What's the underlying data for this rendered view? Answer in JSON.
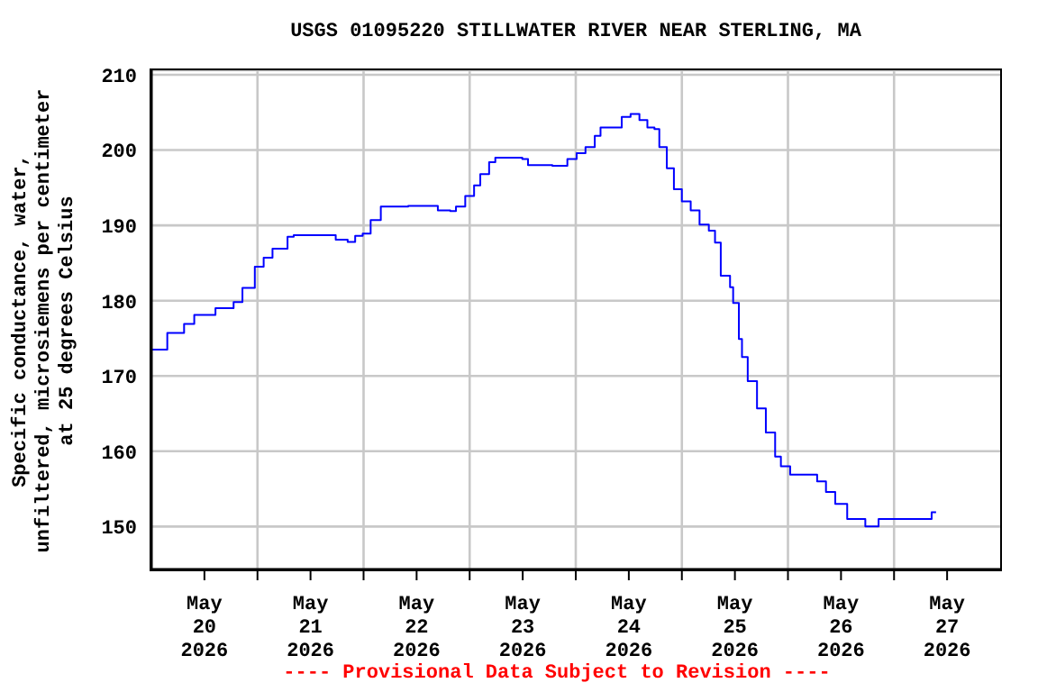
{
  "chart_data": {
    "type": "step",
    "title": "USGS 01095220 STILLWATER RIVER NEAR STERLING, MA",
    "ylabel": "Specific conductance, water,\nunfiltered, microsiemens per centimeter\nat 25 degrees Celsius",
    "annotations": [
      "---- Provisional Data Subject to Revision ----"
    ],
    "x": [
      "2026-05-19T12:12",
      "2026-05-19T15:36",
      "2026-05-19T19:24",
      "2026-05-19T21:42",
      "2026-05-20T02:30",
      "2026-05-20T06:36",
      "2026-05-20T08:36",
      "2026-05-20T11:24",
      "2026-05-20T13:24",
      "2026-05-20T15:24",
      "2026-05-20T18:48",
      "2026-05-20T20:12",
      "2026-05-21T03:00",
      "2026-05-21T05:42",
      "2026-05-21T08:24",
      "2026-05-21T10:06",
      "2026-05-21T11:48",
      "2026-05-21T13:36",
      "2026-05-21T15:54",
      "2026-05-21T22:06",
      "2026-05-22T04:48",
      "2026-05-22T07:36",
      "2026-05-22T08:54",
      "2026-05-22T11:00",
      "2026-05-22T13:00",
      "2026-05-22T14:24",
      "2026-05-22T16:24",
      "2026-05-22T17:48",
      "2026-05-22T23:54",
      "2026-05-23T01:12",
      "2026-05-23T06:42",
      "2026-05-23T10:06",
      "2026-05-23T12:12",
      "2026-05-23T14:12",
      "2026-05-23T16:18",
      "2026-05-23T17:36",
      "2026-05-23T21:00",
      "2026-05-23T22:24",
      "2026-05-24T00:24",
      "2026-05-24T02:24",
      "2026-05-24T04:12",
      "2026-05-24T05:48",
      "2026-05-24T06:54",
      "2026-05-24T08:36",
      "2026-05-24T10:12",
      "2026-05-24T12:00",
      "2026-05-24T14:00",
      "2026-05-24T16:00",
      "2026-05-24T18:06",
      "2026-05-24T19:30",
      "2026-05-24T20:48",
      "2026-05-24T22:54",
      "2026-05-24T23:36",
      "2026-05-25T00:54",
      "2026-05-25T01:36",
      "2026-05-25T02:54",
      "2026-05-25T05:00",
      "2026-05-25T07:00",
      "2026-05-25T09:06",
      "2026-05-25T10:24",
      "2026-05-25T12:30",
      "2026-05-25T16:30",
      "2026-05-25T18:36",
      "2026-05-25T20:36",
      "2026-05-25T22:42",
      "2026-05-26T01:24",
      "2026-05-26T05:30",
      "2026-05-26T08:30",
      "2026-05-26T19:06",
      "2026-05-26T20:30",
      "2026-05-26T21:30"
    ],
    "series": [
      {
        "color": "#0000ff",
        "values": [
          173.5,
          175.7,
          176.9,
          178.1,
          179.0,
          179.8,
          181.7,
          184.5,
          185.7,
          186.9,
          188.5,
          188.7,
          188.7,
          188.1,
          187.8,
          188.6,
          188.9,
          190.7,
          192.5,
          192.6,
          192.0,
          191.9,
          192.5,
          193.9,
          195.3,
          196.8,
          198.4,
          199.0,
          198.8,
          198.0,
          197.9,
          198.8,
          199.6,
          200.4,
          201.9,
          203.0,
          203.0,
          204.4,
          204.8,
          204.0,
          203.0,
          202.8,
          200.4,
          197.6,
          194.8,
          193.2,
          192.0,
          190.1,
          189.3,
          187.7,
          183.3,
          181.8,
          179.7,
          174.9,
          172.5,
          169.3,
          165.7,
          162.5,
          159.3,
          158.0,
          156.9,
          156.9,
          156.0,
          154.6,
          153.0,
          151.0,
          150.0,
          151.0,
          151.0,
          151.9,
          151.9
        ]
      }
    ],
    "xlim": [
      "2026-05-19T12:00",
      "2026-05-27T12:00"
    ],
    "xticks": [
      {
        "value": "2026-05-20",
        "label": "May 20 2026"
      },
      {
        "value": "2026-05-20T12:00",
        "label": null
      },
      {
        "value": "2026-05-21",
        "label": "May 21 2026"
      },
      {
        "value": "2026-05-21T12:00",
        "label": null
      },
      {
        "value": "2026-05-22",
        "label": "May 22 2026"
      },
      {
        "value": "2026-05-22T12:00",
        "label": null
      },
      {
        "value": "2026-05-23",
        "label": "May 23 2026"
      },
      {
        "value": "2026-05-23T12:00",
        "label": null
      },
      {
        "value": "2026-05-24",
        "label": "May 24 2026"
      },
      {
        "value": "2026-05-24T12:00",
        "label": null
      },
      {
        "value": "2026-05-25",
        "label": "May 25 2026"
      },
      {
        "value": "2026-05-25T12:00",
        "label": null
      },
      {
        "value": "2026-05-26",
        "label": "May 26 2026"
      },
      {
        "value": "2026-05-26T12:00",
        "label": null
      },
      {
        "value": "2026-05-27",
        "label": "May 27 2026"
      }
    ],
    "ylim": [
      144.3,
      210.6
    ],
    "yticks": [
      150,
      160,
      170,
      180,
      190,
      200,
      210
    ],
    "grid": true,
    "marker": "none",
    "line_style": "solid"
  }
}
